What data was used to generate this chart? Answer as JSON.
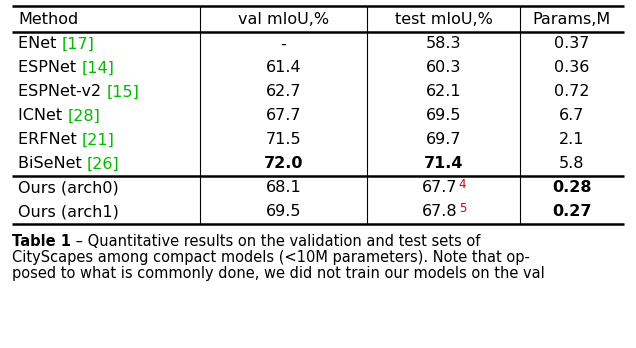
{
  "headers": [
    "Method",
    "val mIoU,%",
    "test mIoU,%",
    "Params,M"
  ],
  "rows": [
    {
      "method_parts": [
        {
          "text": "ENet ",
          "color": "black"
        },
        {
          "text": "[17]",
          "color": "#00bb00"
        }
      ],
      "val": {
        "text": "-",
        "bold": false
      },
      "test": {
        "text": "58.3",
        "bold": false,
        "sup": "",
        "sup_color": "red"
      },
      "params": {
        "text": "0.37",
        "bold": false
      },
      "group": "prior"
    },
    {
      "method_parts": [
        {
          "text": "ESPNet ",
          "color": "black"
        },
        {
          "text": "[14]",
          "color": "#00bb00"
        }
      ],
      "val": {
        "text": "61.4",
        "bold": false
      },
      "test": {
        "text": "60.3",
        "bold": false,
        "sup": "",
        "sup_color": "red"
      },
      "params": {
        "text": "0.36",
        "bold": false
      },
      "group": "prior"
    },
    {
      "method_parts": [
        {
          "text": "ESPNet-v2 ",
          "color": "black"
        },
        {
          "text": "[15]",
          "color": "#00bb00"
        }
      ],
      "val": {
        "text": "62.7",
        "bold": false
      },
      "test": {
        "text": "62.1",
        "bold": false,
        "sup": "",
        "sup_color": "red"
      },
      "params": {
        "text": "0.72",
        "bold": false
      },
      "group": "prior"
    },
    {
      "method_parts": [
        {
          "text": "ICNet ",
          "color": "black"
        },
        {
          "text": "[28]",
          "color": "#00bb00"
        }
      ],
      "val": {
        "text": "67.7",
        "bold": false
      },
      "test": {
        "text": "69.5",
        "bold": false,
        "sup": "",
        "sup_color": "red"
      },
      "params": {
        "text": "6.7",
        "bold": false
      },
      "group": "prior"
    },
    {
      "method_parts": [
        {
          "text": "ERFNet ",
          "color": "black"
        },
        {
          "text": "[21]",
          "color": "#00bb00"
        }
      ],
      "val": {
        "text": "71.5",
        "bold": false
      },
      "test": {
        "text": "69.7",
        "bold": false,
        "sup": "",
        "sup_color": "red"
      },
      "params": {
        "text": "2.1",
        "bold": false
      },
      "group": "prior"
    },
    {
      "method_parts": [
        {
          "text": "BiSeNet ",
          "color": "black"
        },
        {
          "text": "[26]",
          "color": "#00bb00"
        }
      ],
      "val": {
        "text": "72.0",
        "bold": true
      },
      "test": {
        "text": "71.4",
        "bold": true,
        "sup": "",
        "sup_color": "red"
      },
      "params": {
        "text": "5.8",
        "bold": false
      },
      "group": "prior"
    },
    {
      "method_parts": [
        {
          "text": "Ours (arch0)",
          "color": "black"
        }
      ],
      "val": {
        "text": "68.1",
        "bold": false
      },
      "test": {
        "text": "67.7",
        "bold": false,
        "sup": "4",
        "sup_color": "#cc0000"
      },
      "params": {
        "text": "0.28",
        "bold": true
      },
      "group": "ours"
    },
    {
      "method_parts": [
        {
          "text": "Ours (arch1)",
          "color": "black"
        }
      ],
      "val": {
        "text": "69.5",
        "bold": false
      },
      "test": {
        "text": "67.8",
        "bold": false,
        "sup": "5",
        "sup_color": "#cc0000"
      },
      "params": {
        "text": "0.27",
        "bold": true
      },
      "group": "ours"
    }
  ],
  "caption_parts": [
    {
      "text": "Table 1",
      "bold": true
    },
    {
      "text": " – Quantitative results on the validation and test sets of\nCityScapes among compact models (<10M parameters). Note that op-\nposed to what is commonly done, we did not train our models on the val",
      "bold": false
    }
  ],
  "bg_color": "#ffffff",
  "line_color": "#000000",
  "green_color": "#00bb00",
  "red_color": "#cc0000",
  "body_fs": 11.5,
  "header_fs": 11.5,
  "caption_fs": 10.5
}
